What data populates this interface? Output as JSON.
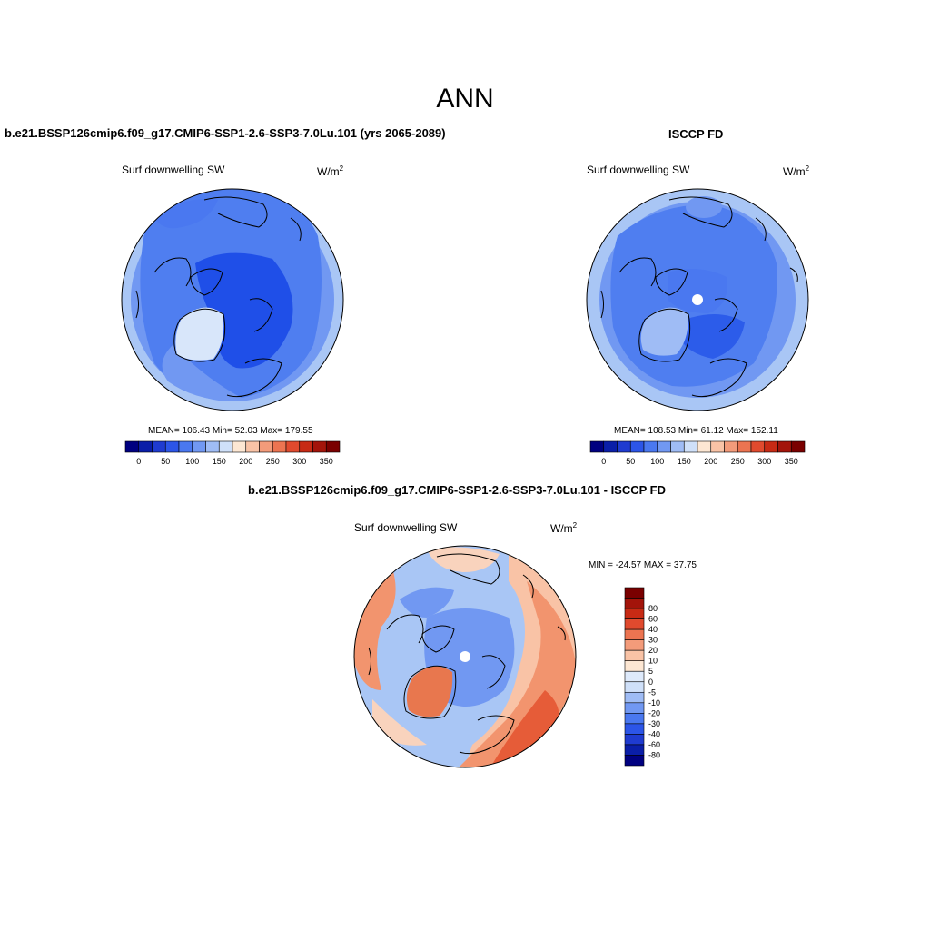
{
  "figure": {
    "title": "ANN",
    "difference_title": "b.e21.BSSP126cmip6.f09_g17.CMIP6-SSP1-2.6-SSP3-7.0Lu.101 - ISCCP FD"
  },
  "panels": {
    "model": {
      "title": "b.e21.BSSP126cmip6.f09_g17.CMIP6-SSP1-2.6-SSP3-7.0Lu.101 (yrs 2065-2089)",
      "variable": "Surf downwelling SW",
      "units_base": "W/m",
      "units_exp": "2",
      "stats": "MEAN= 106.43  Min=  52.03  Max= 179.55"
    },
    "obs": {
      "title": "ISCCP FD",
      "variable": "Surf downwelling SW",
      "units_base": "W/m",
      "units_exp": "2",
      "stats": "MEAN= 108.53  Min=  61.12  Max= 152.11"
    },
    "diff": {
      "variable": "Surf downwelling SW",
      "units_base": "W/m",
      "units_exp": "2",
      "stats": "MIN = -24.57 MAX =  37.75"
    }
  },
  "colorbars": {
    "absolute": {
      "colors": [
        "#000080",
        "#0a1ea8",
        "#1f3bd0",
        "#2c55e8",
        "#4a78f0",
        "#7198f2",
        "#9fbcf5",
        "#cfe0f9",
        "#fde7d3",
        "#f9c3a6",
        "#f39b7a",
        "#ec7451",
        "#e04a2e",
        "#c72a14",
        "#a3140a",
        "#7a0000"
      ],
      "tick_labels": [
        "0",
        "50",
        "100",
        "150",
        "200",
        "250",
        "300",
        "350"
      ]
    },
    "difference": {
      "colors": [
        "#000080",
        "#0a1ea8",
        "#1f3bd0",
        "#2c55e8",
        "#4a78f0",
        "#7198f2",
        "#9fbcf5",
        "#cfe0f9",
        "#deeafb",
        "#fde7d3",
        "#f9c3a6",
        "#f39b7a",
        "#ec7451",
        "#e04a2e",
        "#c72a14",
        "#a3140a",
        "#7a0000"
      ],
      "tick_labels": [
        "-80",
        "-60",
        "-40",
        "-30",
        "-20",
        "-10",
        "-5",
        "0",
        "5",
        "10",
        "20",
        "30",
        "40",
        "60",
        "80"
      ]
    }
  },
  "map_colors": {
    "model": {
      "base": "#4f7ef0",
      "outer": "#a9c6f5",
      "ring": "#7198f2",
      "core": "#1f4fe8",
      "greenland": "#d8e6fa"
    },
    "obs": {
      "base": "#4f7ef0",
      "outer": "#a9c6f5",
      "ring": "#7198f2",
      "core": "#2c5cea",
      "greenland": "#9fbcf5"
    },
    "diff": {
      "base": "#a9c6f5",
      "warm": "#f2946e",
      "hot": "#e65c38",
      "pale": "#f9d3bd",
      "cool": "#7198f2",
      "greenland": "#e8774e"
    }
  }
}
